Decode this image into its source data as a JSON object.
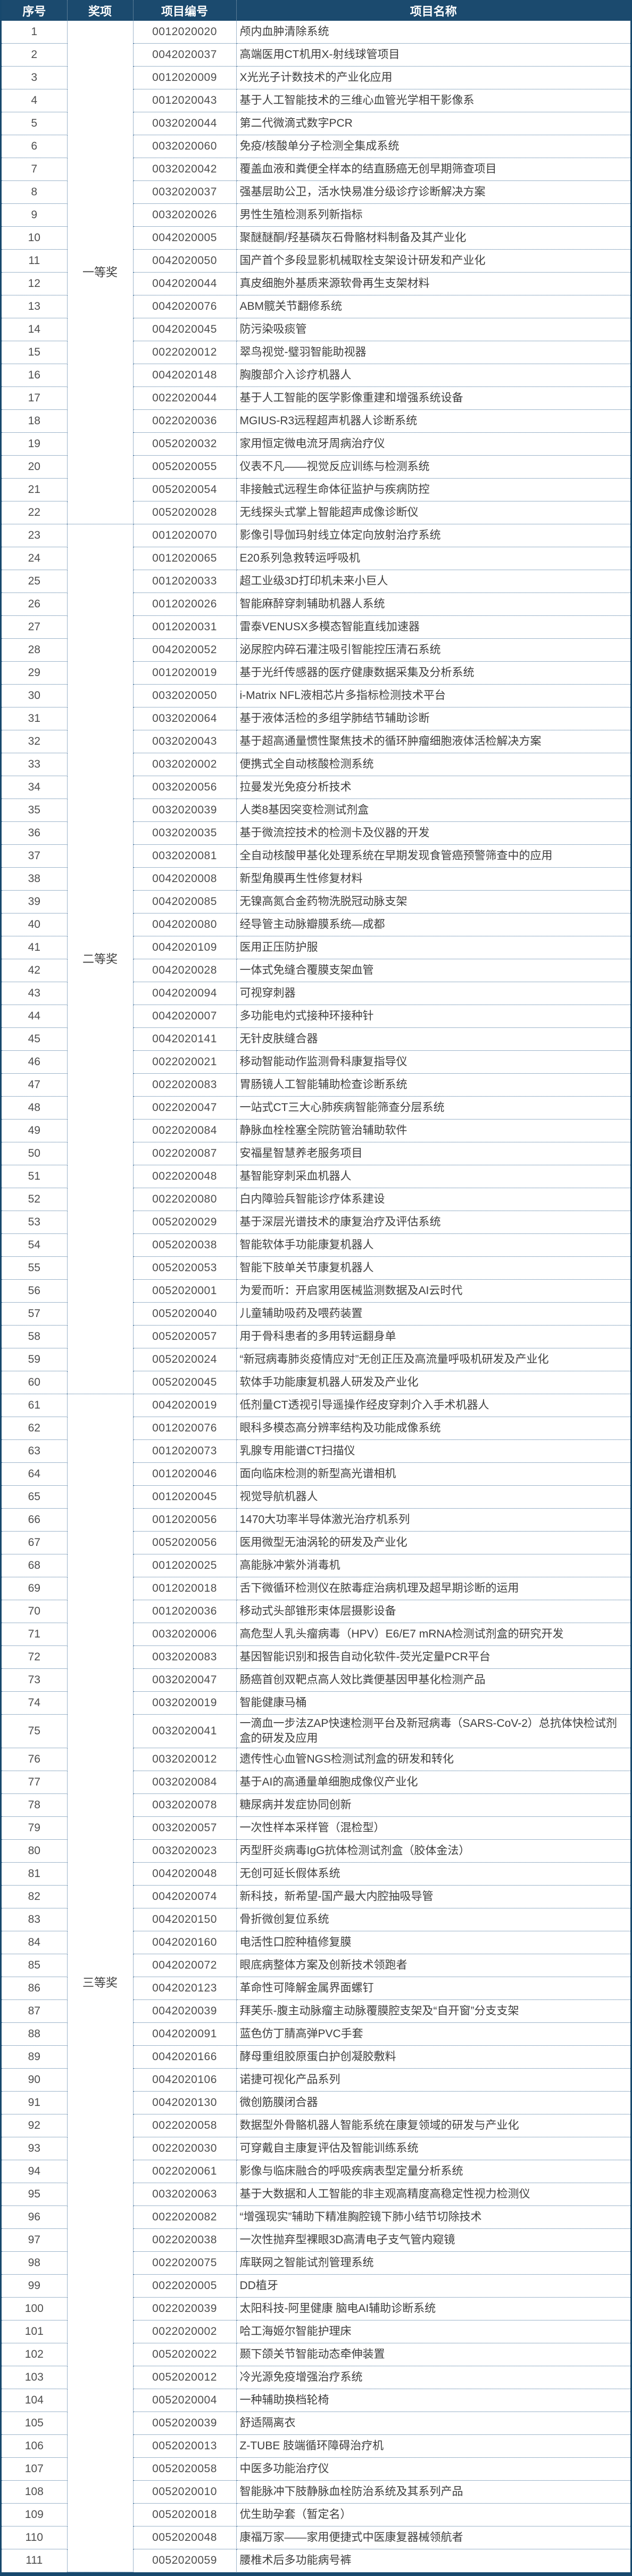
{
  "colors": {
    "header_bg": "#1b4a6e",
    "outer_border": "#17486d",
    "dotted_border": "#3c6b96"
  },
  "table": {
    "columns": [
      {
        "label": "序号"
      },
      {
        "label": "奖项"
      },
      {
        "label": "项目编号"
      },
      {
        "label": "项目名称"
      }
    ],
    "awards": [
      {
        "label": "一等奖",
        "from": 1,
        "to": 22
      },
      {
        "label": "二等奖",
        "from": 23,
        "to": 60
      },
      {
        "label": "三等奖",
        "from": 61,
        "to": 111
      }
    ],
    "rows": [
      {
        "n": "1",
        "code": "0012020020",
        "name": "颅内血肿清除系统"
      },
      {
        "n": "2",
        "code": "0042020037",
        "name": "高端医用CT机用X-射线球管项目"
      },
      {
        "n": "3",
        "code": "0012020009",
        "name": "X光光子计数技术的产业化应用"
      },
      {
        "n": "4",
        "code": "0012020043",
        "name": "基于人工智能技术的三维心血管光学相干影像系"
      },
      {
        "n": "5",
        "code": "0032020044",
        "name": "第二代微滴式数字PCR"
      },
      {
        "n": "6",
        "code": "0032020060",
        "name": "免疫/核酸单分子检测全集成系统"
      },
      {
        "n": "7",
        "code": "0032020042",
        "name": "覆盖血液和粪便全样本的结直肠癌无创早期筛查项目"
      },
      {
        "n": "8",
        "code": "0032020037",
        "name": "强基层助公卫，活水快易准分级诊疗诊断解决方案"
      },
      {
        "n": "9",
        "code": "0032020026",
        "name": "男性生殖检测系列新指标"
      },
      {
        "n": "10",
        "code": "0042020005",
        "name": "聚醚醚酮/羟基磷灰石骨骼材料制备及其产业化"
      },
      {
        "n": "11",
        "code": "0042020050",
        "name": "国产首个多段显影机械取栓支架设计研发和产业化"
      },
      {
        "n": "12",
        "code": "0042020044",
        "name": "真皮细胞外基质来源软骨再生支架材料"
      },
      {
        "n": "13",
        "code": "0042020076",
        "name": "ABM髋关节翻修系统"
      },
      {
        "n": "14",
        "code": "0042020045",
        "name": "防污染吸痰管"
      },
      {
        "n": "15",
        "code": "0022020012",
        "name": "翠鸟视觉-璧羽智能助视器"
      },
      {
        "n": "16",
        "code": "0042020148",
        "name": "胸腹部介入诊疗机器人"
      },
      {
        "n": "17",
        "code": "0022020044",
        "name": "基于人工智能的医学影像重建和增强系统设备"
      },
      {
        "n": "18",
        "code": "0022020036",
        "name": "MGIUS-R3远程超声机器人诊断系统"
      },
      {
        "n": "19",
        "code": "0052020032",
        "name": "家用恒定微电流牙周病治疗仪"
      },
      {
        "n": "20",
        "code": "0052020055",
        "name": "仪表不凡——视觉反应训练与检测系统"
      },
      {
        "n": "21",
        "code": "0052020054",
        "name": "非接触式远程生命体征监护与疾病防控"
      },
      {
        "n": "22",
        "code": "0052020028",
        "name": "无线探头式掌上智能超声成像诊断仪"
      },
      {
        "n": "23",
        "code": "0012020070",
        "name": "影像引导伽玛射线立体定向放射治疗系统"
      },
      {
        "n": "24",
        "code": "0012020065",
        "name": "E20系列急救转运呼吸机"
      },
      {
        "n": "25",
        "code": "0012020033",
        "name": "超工业级3D打印机未来小巨人"
      },
      {
        "n": "26",
        "code": "0012020026",
        "name": "智能麻醉穿刺辅助机器人系统"
      },
      {
        "n": "27",
        "code": "0012020031",
        "name": "雷泰VENUSX多模态智能直线加速器"
      },
      {
        "n": "28",
        "code": "0042020052",
        "name": "泌尿腔内碎石灌注吸引智能控压清石系统"
      },
      {
        "n": "29",
        "code": "0012020019",
        "name": "基于光纤传感器的医疗健康数据采集及分析系统"
      },
      {
        "n": "30",
        "code": "0032020050",
        "name": "i-Matrix NFL液相芯片多指标检测技术平台"
      },
      {
        "n": "31",
        "code": "0032020064",
        "name": "基于液体活检的多组学肺结节辅助诊断"
      },
      {
        "n": "32",
        "code": "0032020043",
        "name": "基于超高通量惯性聚焦技术的循环肿瘤细胞液体活检解决方案"
      },
      {
        "n": "33",
        "code": "0032020002",
        "name": "便携式全自动核酸检测系统"
      },
      {
        "n": "34",
        "code": "0032020056",
        "name": "拉曼发光免疫分析技术"
      },
      {
        "n": "35",
        "code": "0032020039",
        "name": "人类8基因突变检测试剂盒"
      },
      {
        "n": "36",
        "code": "0032020035",
        "name": "基于微流控技术的检测卡及仪器的开发"
      },
      {
        "n": "37",
        "code": "0032020081",
        "name": "全自动核酸甲基化处理系统在早期发现食管癌预警筛查中的应用"
      },
      {
        "n": "38",
        "code": "0042020008",
        "name": "新型角膜再生性修复材料"
      },
      {
        "n": "39",
        "code": "0042020085",
        "name": "无镍高氮合金药物洗脱冠动脉支架"
      },
      {
        "n": "40",
        "code": "0042020080",
        "name": "经导管主动脉瓣膜系统—成都"
      },
      {
        "n": "41",
        "code": "0042020109",
        "name": "医用正压防护服"
      },
      {
        "n": "42",
        "code": "0042020028",
        "name": "一体式免缝合覆膜支架血管"
      },
      {
        "n": "43",
        "code": "0042020094",
        "name": "可视穿刺器"
      },
      {
        "n": "44",
        "code": "0042020007",
        "name": "多功能电灼式接种环接种针"
      },
      {
        "n": "45",
        "code": "0042020141",
        "name": "无针皮肤缝合器"
      },
      {
        "n": "46",
        "code": "0022020021",
        "name": "移动智能动作监测骨科康复指导仪"
      },
      {
        "n": "47",
        "code": "0022020083",
        "name": "胃肠镜人工智能辅助检查诊断系统"
      },
      {
        "n": "48",
        "code": "0022020047",
        "name": "一站式CT三大心肺疾病智能筛查分层系统"
      },
      {
        "n": "49",
        "code": "0022020084",
        "name": "静脉血栓栓塞全院防管治辅助软件"
      },
      {
        "n": "50",
        "code": "0022020087",
        "name": "安福星智慧养老服务项目"
      },
      {
        "n": "51",
        "code": "0022020048",
        "name": "基智能穿刺采血机器人"
      },
      {
        "n": "52",
        "code": "0022020080",
        "name": "白内障验兵智能诊疗体系建设"
      },
      {
        "n": "53",
        "code": "0052020029",
        "name": "基于深层光谱技术的康复治疗及评估系统"
      },
      {
        "n": "54",
        "code": "0052020038",
        "name": "智能软体手功能康复机器人"
      },
      {
        "n": "55",
        "code": "0052020053",
        "name": "智能下肢单关节康复机器人"
      },
      {
        "n": "56",
        "code": "0052020001",
        "name": "为爱而听：开启家用医械监测数据及AI云时代"
      },
      {
        "n": "57",
        "code": "0052020040",
        "name": "儿童辅助吸药及喂药装置"
      },
      {
        "n": "58",
        "code": "0052020057",
        "name": "用于骨科患者的多用转运翻身单"
      },
      {
        "n": "59",
        "code": "0052020024",
        "name": "“新冠病毒肺炎疫情应对”无创正压及高流量呼吸机研发及产业化"
      },
      {
        "n": "60",
        "code": "0052020045",
        "name": "软体手功能康复机器人研发及产业化"
      },
      {
        "n": "61",
        "code": "0042020019",
        "name": "低剂量CT透视引导遥操作经皮穿刺介入手术机器人"
      },
      {
        "n": "62",
        "code": "0012020076",
        "name": "眼科多模态高分辨率结构及功能成像系统"
      },
      {
        "n": "63",
        "code": "0012020073",
        "name": "乳腺专用能谱CT扫描仪"
      },
      {
        "n": "64",
        "code": "0012020046",
        "name": "面向临床检测的新型高光谱相机"
      },
      {
        "n": "65",
        "code": "0012020045",
        "name": "视觉导航机器人"
      },
      {
        "n": "66",
        "code": "0012020056",
        "name": "1470大功率半导体激光治疗机系列"
      },
      {
        "n": "67",
        "code": "0052020056",
        "name": "医用微型无油涡轮的研发及产业化"
      },
      {
        "n": "68",
        "code": "0012020025",
        "name": "高能脉冲紫外消毒机"
      },
      {
        "n": "69",
        "code": "0012020018",
        "name": "舌下微循环检测仪在脓毒症治病机理及超早期诊断的运用"
      },
      {
        "n": "70",
        "code": "0012020036",
        "name": "移动式头部锥形束体层摄影设备"
      },
      {
        "n": "71",
        "code": "0032020006",
        "name": "高危型人乳头瘤病毒（HPV）E6/E7 mRNA检测试剂盒的研究开发"
      },
      {
        "n": "72",
        "code": "0032020083",
        "name": "基因智能识别和报告自动化软件-荧光定量PCR平台"
      },
      {
        "n": "73",
        "code": "0032020047",
        "name": "肠癌首创双靶点高人效比粪便基因甲基化检测产品"
      },
      {
        "n": "74",
        "code": "0032020019",
        "name": "智能健康马桶"
      },
      {
        "n": "75",
        "code": "0032020041",
        "name": "一滴血一步法ZAP快速检测平台及新冠病毒（SARS-CoV-2）总抗体快检试剂盒的研发及应用"
      },
      {
        "n": "76",
        "code": "0032020012",
        "name": "遗传性心血管NGS检测试剂盒的研发和转化"
      },
      {
        "n": "77",
        "code": "0032020084",
        "name": "基于AI的高通量单细胞成像仪产业化"
      },
      {
        "n": "78",
        "code": "0032020078",
        "name": "糖尿病并发症协同创新"
      },
      {
        "n": "79",
        "code": "0032020057",
        "name": "一次性样本采样管（混检型）"
      },
      {
        "n": "80",
        "code": "0032020023",
        "name": "丙型肝炎病毒IgG抗体检测试剂盒（胶体金法）"
      },
      {
        "n": "81",
        "code": "0042020048",
        "name": "无创可延长假体系统"
      },
      {
        "n": "82",
        "code": "0042020074",
        "name": "新科技，新希望-国产最大内腔抽吸导管"
      },
      {
        "n": "83",
        "code": "0042020150",
        "name": "骨折微创复位系统"
      },
      {
        "n": "84",
        "code": "0042020160",
        "name": "电活性口腔种植修复膜"
      },
      {
        "n": "85",
        "code": "0042020072",
        "name": "眼底病整体方案及创新技术领跑者"
      },
      {
        "n": "86",
        "code": "0042020123",
        "name": "革命性可降解金属界面螺钉"
      },
      {
        "n": "87",
        "code": "0042020039",
        "name": "拜芙乐-腹主动脉瘤主动脉覆膜腔支架及“自开窗”分支支架"
      },
      {
        "n": "88",
        "code": "0042020091",
        "name": "蓝色仿丁腈高弹PVC手套"
      },
      {
        "n": "89",
        "code": "0042020166",
        "name": "酵母重组胶原蛋白护创凝胶敷料"
      },
      {
        "n": "90",
        "code": "0042020106",
        "name": "诺捷可视化产品系列"
      },
      {
        "n": "91",
        "code": "0042020130",
        "name": "微创筋膜闭合器"
      },
      {
        "n": "92",
        "code": "0022020058",
        "name": "数据型外骨骼机器人智能系统在康复领域的研发与产业化"
      },
      {
        "n": "93",
        "code": "0022020030",
        "name": "可穿戴自主康复评估及智能训练系统"
      },
      {
        "n": "94",
        "code": "0022020061",
        "name": "影像与临床融合的呼吸疾病表型定量分析系统"
      },
      {
        "n": "95",
        "code": "0032020063",
        "name": "基于大数据和人工智能的非主观高精度高稳定性视力检测仪"
      },
      {
        "n": "96",
        "code": "0022020082",
        "name": "“增强现实”辅助下精准胸腔镜下肺小结节切除技术"
      },
      {
        "n": "97",
        "code": "0022020038",
        "name": "一次性抛弃型裸眼3D高清电子支气管内窥镜"
      },
      {
        "n": "98",
        "code": "0022020075",
        "name": "库联网之智能试剂管理系统"
      },
      {
        "n": "99",
        "code": "0022020005",
        "name": "DD植牙"
      },
      {
        "n": "100",
        "code": "0022020039",
        "name": "太阳科技-阿里健康 脑电AI辅助诊断系统"
      },
      {
        "n": "101",
        "code": "0022020002",
        "name": "哈工海姬尔智能护理床"
      },
      {
        "n": "102",
        "code": "0052020022",
        "name": "颞下颌关节智能动态牵伸装置"
      },
      {
        "n": "103",
        "code": "0052020012",
        "name": "冷光源免疫增强治疗系统"
      },
      {
        "n": "104",
        "code": "0052020004",
        "name": "一种辅助换档轮椅"
      },
      {
        "n": "105",
        "code": "0052020039",
        "name": "舒适隔离衣"
      },
      {
        "n": "106",
        "code": "0052020013",
        "name": "Z-TUBE 肢端循环障碍治疗机"
      },
      {
        "n": "107",
        "code": "0052020058",
        "name": "中医多功能治疗仪"
      },
      {
        "n": "108",
        "code": "0052020010",
        "name": "智能脉冲下肢静脉血栓防治系统及其系列产品"
      },
      {
        "n": "109",
        "code": "0052020018",
        "name": "优生助孕套（暂定名）"
      },
      {
        "n": "110",
        "code": "0052020048",
        "name": "康福万家——家用便捷式中医康复器械领航者"
      },
      {
        "n": "111",
        "code": "0052020059",
        "name": "腰椎术后多功能病号裤"
      }
    ]
  }
}
